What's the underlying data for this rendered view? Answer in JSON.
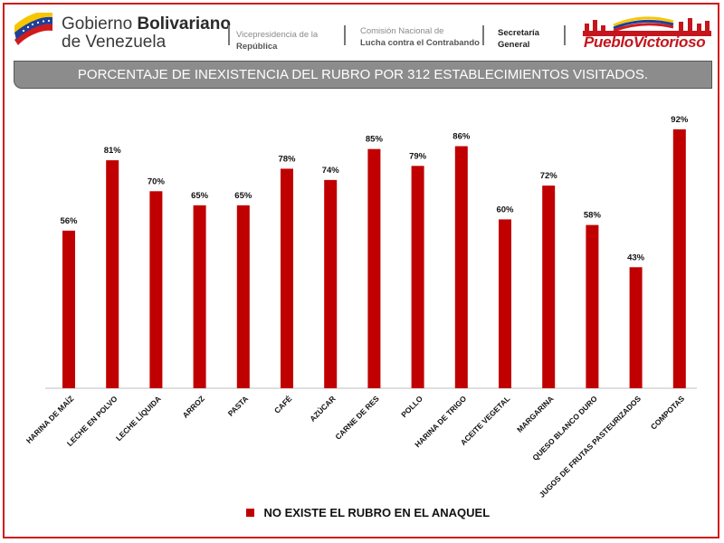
{
  "header": {
    "gov_prefix": "Gobierno",
    "gov_bold": "Bolivariano",
    "gov_line2": "de Venezuela",
    "dept1_line1": "Vicepresidencia de la",
    "dept1_line2": "República",
    "dept2_line1": "Comisión Nacional de",
    "dept2_line2": "Lucha contra el Contrabando",
    "dept3_line1": "Secretaría",
    "dept3_line2": "General",
    "logo_text": "PuebloVictorioso"
  },
  "colors": {
    "bar": "#c00000",
    "border": "#d11a1a",
    "title_bg": "#8c8c8c"
  },
  "chart_data": {
    "type": "bar",
    "title": "PORCENTAJE DE INEXISTENCIA DEL RUBRO POR 312 ESTABLECIMIENTOS VISITADOS.",
    "categories": [
      "HARINA DE MAÍZ",
      "LECHE EN POLVO",
      "LECHE LÍQUIDA",
      "ARROZ",
      "PASTA",
      "CAFÉ",
      "AZÚCAR",
      "CARNE DE RES",
      "POLLO",
      "HARINA DE TRIGO",
      "ACEITE VEGETAL",
      "MARGARINA",
      "QUESO BLANCO DURO",
      "JUGOS DE FRUTAS PASTEURIZADOS",
      "COMPOTAS"
    ],
    "series": [
      {
        "name": "NO EXISTE EL RUBRO EN EL ANAQUEL",
        "values": [
          56,
          81,
          70,
          65,
          65,
          78,
          74,
          85,
          79,
          86,
          60,
          72,
          58,
          43,
          92
        ],
        "labels": [
          "56%",
          "81%",
          "70%",
          "65%",
          "65%",
          "78%",
          "74%",
          "85%",
          "79%",
          "86%",
          "60%",
          "72%",
          "58%",
          "43%",
          "92%"
        ]
      }
    ],
    "ylim": [
      0,
      100
    ],
    "xlabel": "",
    "ylabel": "",
    "grid": false,
    "legend_position": "bottom"
  }
}
